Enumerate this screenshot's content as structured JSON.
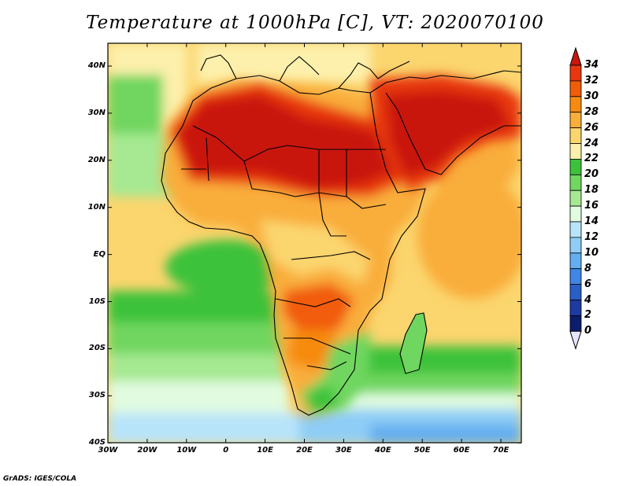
{
  "title": "Temperature at 1000hPa [C], VT: 2020070100",
  "credit": "GrADS: IGES/COLA",
  "lat_labels": [
    "40N",
    "30N",
    "20N",
    "10N",
    "EQ",
    "10S",
    "20S",
    "30S",
    "40S"
  ],
  "lon_labels": [
    "30W",
    "20W",
    "10W",
    "0",
    "10E",
    "20E",
    "30E",
    "40E",
    "50E",
    "60E",
    "70E"
  ],
  "colorbar": {
    "labels": [
      "34",
      "32",
      "30",
      "28",
      "26",
      "24",
      "22",
      "20",
      "18",
      "16",
      "14",
      "12",
      "10",
      "8",
      "6",
      "4",
      "2",
      "0"
    ],
    "colors": [
      "#c9160f",
      "#e8370f",
      "#f15c0a",
      "#f68b10",
      "#f9ad3b",
      "#fbd56e",
      "#fdf0ac",
      "#3cc23a",
      "#6fd65f",
      "#a6e992",
      "#e1fbe0",
      "#b8e4fa",
      "#8fcdf6",
      "#63aef0",
      "#3f86e6",
      "#2a5ec7",
      "#1c3aa2",
      "#0d1c6d"
    ]
  }
}
